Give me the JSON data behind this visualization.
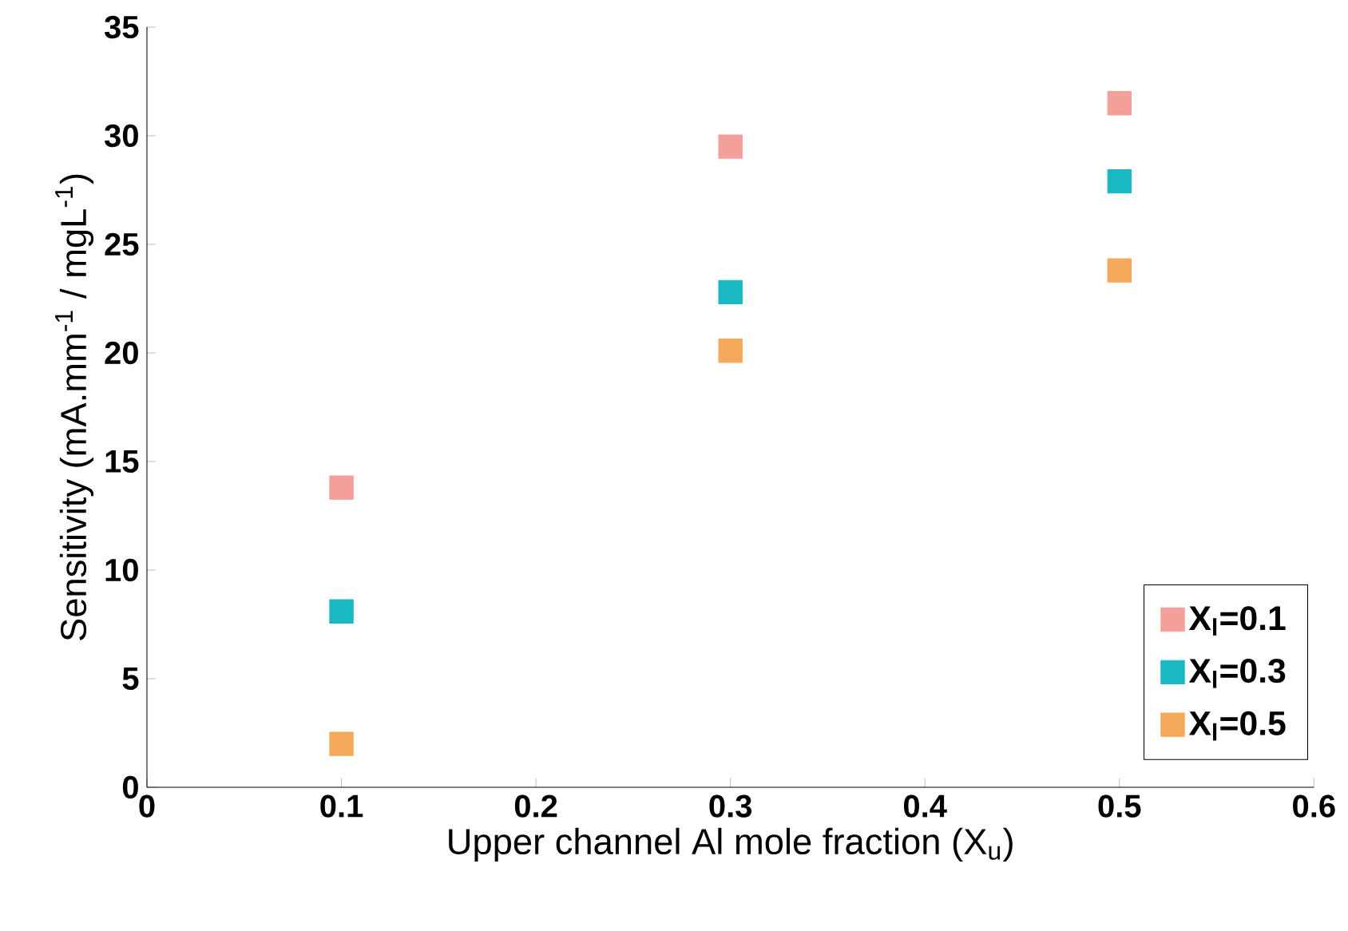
{
  "chart_data": {
    "type": "scatter",
    "xlabel": "Upper channel Al mole fraction (X$_{u}$)",
    "ylabel": "Sensitivity (mA.mm$^{-1}$ / mgL$^{-1}$)",
    "x": [
      0.1,
      0.3,
      0.5
    ],
    "series": [
      {
        "name": "X$_{l}$=0.1",
        "color": "#f4a09a",
        "values": [
          13.8,
          29.5,
          31.5
        ]
      },
      {
        "name": "X$_{l}$=0.3",
        "color": "#1ab8c0",
        "values": [
          8.1,
          22.8,
          27.9
        ]
      },
      {
        "name": "X$_{l}$=0.5",
        "color": "#f5a95a",
        "values": [
          2.0,
          20.1,
          23.8
        ]
      }
    ],
    "xlim": [
      0,
      0.6
    ],
    "ylim": [
      0,
      35
    ],
    "xticks": [
      0,
      0.1,
      0.2,
      0.3,
      0.4,
      0.5,
      0.6
    ],
    "yticks": [
      0,
      5,
      10,
      15,
      20,
      25,
      30,
      35
    ],
    "marker": "square",
    "legend": "bottom right",
    "grid": false
  }
}
